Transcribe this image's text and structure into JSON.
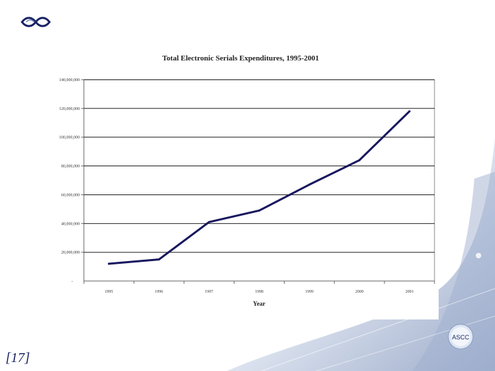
{
  "slide": {
    "number_label": "[17]"
  },
  "badge": {
    "label": "ASCC"
  },
  "colors": {
    "line": "#17175e",
    "grid": "#000000",
    "accent": "#1a2366"
  },
  "chart_data": {
    "type": "line",
    "title": "Total Electronic Serials Expenditures, 1995-2001",
    "xlabel": "Year",
    "ylabel": "",
    "categories": [
      "1995",
      "1996",
      "1997",
      "1998",
      "1999",
      "2000",
      "2001"
    ],
    "x_tick_labels": [
      "1995",
      "1996",
      "1997",
      "1998",
      "1999",
      "2000",
      "2001"
    ],
    "ylim": [
      0,
      140000000
    ],
    "y_ticks": [
      20000000,
      40000000,
      60000000,
      80000000,
      100000000,
      120000000,
      140000000
    ],
    "y_tick_labels": [
      "20,000,000",
      "40,000,000",
      "60,000,000",
      "80,000,000",
      "100,000,000",
      "120,000,000",
      "140,000,000"
    ],
    "bottom_tick_label": "-",
    "grid": true,
    "series": [
      {
        "name": "Total Electronic Serials Expenditures",
        "values": [
          12000000,
          15000000,
          41000000,
          49000000,
          67000000,
          84000000,
          118000000
        ]
      }
    ]
  }
}
